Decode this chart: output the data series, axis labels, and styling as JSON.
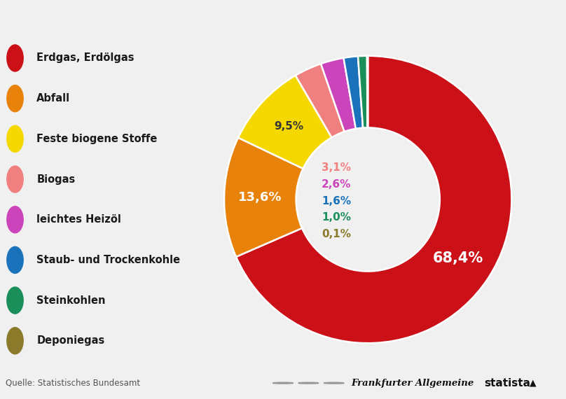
{
  "labels": [
    "Erdgas, Erdölgas",
    "Abfall",
    "Feste biogene Stoffe",
    "Biogas",
    "leichtes Heizöl",
    "Staub- und Trockenkohle",
    "Steinkohlen",
    "Deponiegas"
  ],
  "values": [
    68.4,
    13.6,
    9.5,
    3.1,
    2.6,
    1.6,
    1.0,
    0.1
  ],
  "colors": [
    "#cc1018",
    "#e8820a",
    "#f5d800",
    "#f08080",
    "#cc44bb",
    "#1a72bb",
    "#1a8f5a",
    "#8b7a2a"
  ],
  "pct_labels": [
    "68,4%",
    "13,6%",
    "9,5%",
    "3,1%",
    "2,6%",
    "1,6%",
    "1,0%",
    "0,1%"
  ],
  "inner_label_colors": [
    "#f08080",
    "#cc44bb",
    "#1a72bb",
    "#1a8f5a",
    "#8b7a2a"
  ],
  "background_color": "#f0f0f0",
  "source_text": "Quelle: Statistisches Bundesamt",
  "faz_text": "Frankfurter Allgemeine",
  "statista_text": "statista"
}
